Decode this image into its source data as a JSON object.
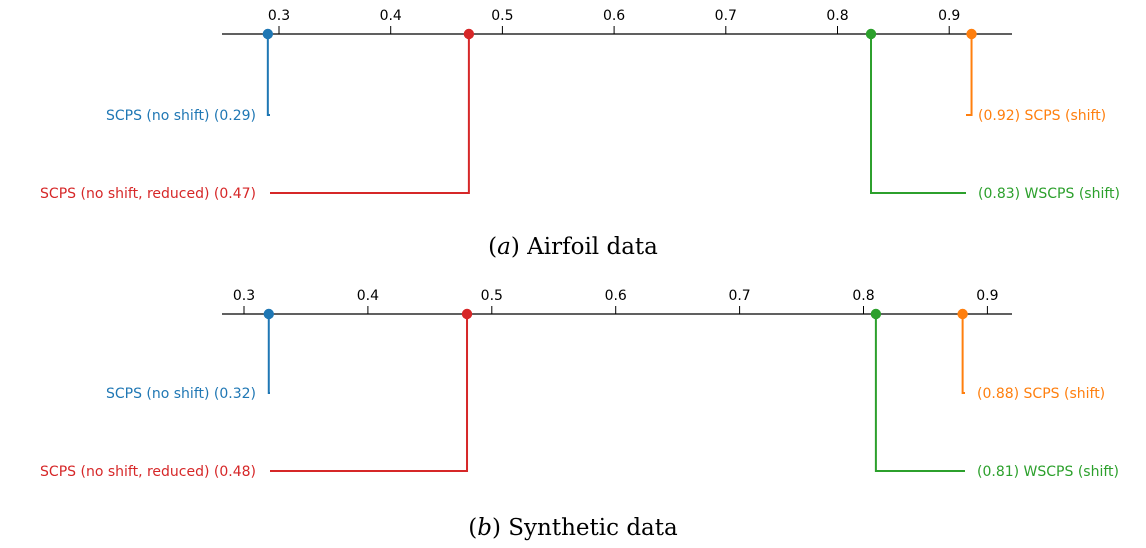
{
  "chart_data": [
    {
      "type": "critical-difference-diagram",
      "caption_letter": "a",
      "caption_text": "Airfoil data",
      "xlim": [
        0.26,
        0.96
      ],
      "ticks": [
        0.3,
        0.4,
        0.5,
        0.6,
        0.7,
        0.8,
        0.9
      ],
      "tick_labels": [
        "0.3",
        "0.4",
        "0.5",
        "0.6",
        "0.7",
        "0.8",
        "0.9"
      ],
      "methods": [
        {
          "label": "SCPS (no shift) (0.29)",
          "value": 0.29,
          "side": "left",
          "level": 1,
          "color": "#1f77b4"
        },
        {
          "label": "SCPS (no shift, reduced) (0.47)",
          "value": 0.47,
          "side": "left",
          "level": 2,
          "color": "#d62728"
        },
        {
          "label": "(0.92) SCPS (shift)",
          "value": 0.92,
          "side": "right",
          "level": 1,
          "color": "#ff7f0e"
        },
        {
          "label": "(0.83) WSCPS (shift)",
          "value": 0.83,
          "side": "right",
          "level": 2,
          "color": "#2ca02c"
        }
      ]
    },
    {
      "type": "critical-difference-diagram",
      "caption_letter": "b",
      "caption_text": "Synthetic data",
      "xlim": [
        0.28,
        0.94
      ],
      "ticks": [
        0.3,
        0.4,
        0.5,
        0.6,
        0.7,
        0.8,
        0.9
      ],
      "tick_labels": [
        "0.3",
        "0.4",
        "0.5",
        "0.6",
        "0.7",
        "0.8",
        "0.9"
      ],
      "methods": [
        {
          "label": "SCPS (no shift) (0.32)",
          "value": 0.32,
          "side": "left",
          "level": 1,
          "color": "#1f77b4"
        },
        {
          "label": "SCPS (no shift, reduced) (0.48)",
          "value": 0.48,
          "side": "left",
          "level": 2,
          "color": "#d62728"
        },
        {
          "label": "(0.88) SCPS (shift)",
          "value": 0.88,
          "side": "right",
          "level": 1,
          "color": "#ff7f0e"
        },
        {
          "label": "(0.81) WSCPS (shift)",
          "value": 0.81,
          "side": "right",
          "level": 2,
          "color": "#2ca02c"
        }
      ]
    }
  ]
}
